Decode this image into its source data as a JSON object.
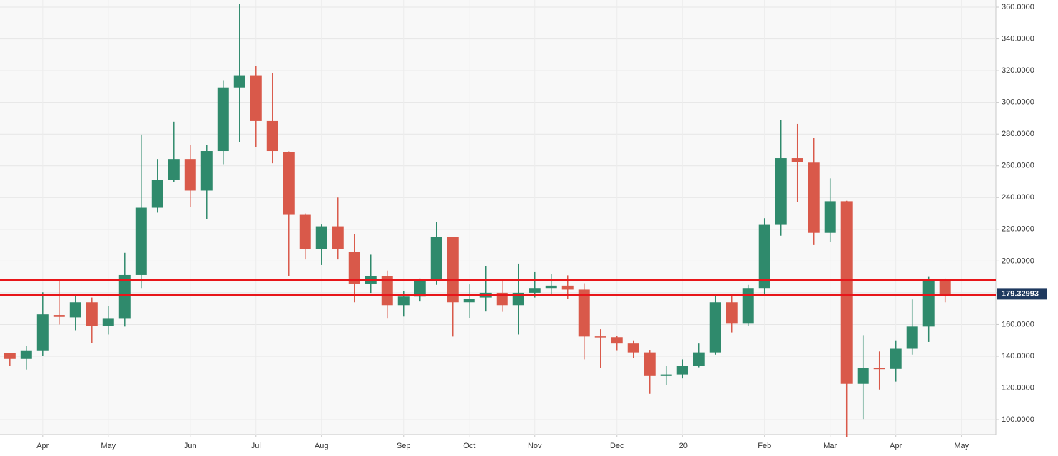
{
  "chart_data": {
    "type": "candlestick",
    "open": [
      141.9,
      138.3,
      143.7,
      166,
      164.5,
      174,
      159,
      163.6,
      191.2,
      233.6,
      251.2,
      264.3,
      244.4,
      269.3,
      309.4,
      317.1,
      288.2,
      268.8,
      229.1,
      207.4,
      221.9,
      206,
      185.8,
      190.7,
      172.2,
      177.6,
      188.5,
      215.1,
      174,
      177,
      180,
      172.2,
      180,
      183,
      184.5,
      182,
      152.5,
      152,
      148,
      142.4,
      127.5,
      128.5,
      133.9,
      142.4,
      174,
      160.5,
      183,
      222.8,
      264.8,
      262,
      217.8,
      237.7,
      122.6,
      132.5,
      132,
      144.7,
      158.7,
      188
    ],
    "high": [
      142,
      146.5,
      180.3,
      188.5,
      178.5,
      177,
      171.8,
      205.2,
      279.7,
      264.3,
      287.8,
      273.3,
      273,
      314,
      362,
      323,
      318.5,
      269,
      230,
      223,
      240,
      216.9,
      204,
      194,
      181,
      189,
      224.6,
      215,
      185.3,
      196.6,
      188,
      198.4,
      193,
      192,
      191,
      186,
      157,
      153,
      150,
      144,
      134,
      138,
      148,
      178,
      178,
      185,
      227,
      288.7,
      286.4,
      277.8,
      252.1,
      238,
      153.3,
      143,
      150,
      175.8,
      190,
      189
    ],
    "low": [
      133.9,
      131.6,
      140.2,
      160,
      156.4,
      148.3,
      153.7,
      158.7,
      183,
      230.5,
      250,
      234,
      226.4,
      261,
      274.7,
      272,
      261.6,
      190.7,
      201,
      197.5,
      201,
      174,
      179.9,
      163.7,
      165,
      174.5,
      185,
      152.4,
      164,
      168.2,
      168,
      153.7,
      177,
      178,
      176,
      138,
      132.5,
      143.8,
      139,
      116.3,
      122,
      126,
      133,
      141,
      155,
      159,
      178,
      216,
      237.2,
      210.1,
      212,
      89,
      100.4,
      119,
      124,
      141,
      149,
      174
    ],
    "close": [
      138.3,
      143.7,
      166.4,
      164.8,
      174,
      159,
      163.6,
      191.2,
      233.6,
      251.2,
      264.3,
      244.4,
      269.3,
      309.4,
      317.1,
      288.2,
      269.3,
      229.1,
      207.4,
      221.9,
      207.4,
      185.8,
      190.7,
      172.2,
      177.6,
      188.5,
      215.1,
      174,
      176.3,
      180,
      172.2,
      180,
      183,
      184.5,
      182,
      152.4,
      152,
      148,
      142.4,
      127.5,
      128.5,
      133.9,
      142.4,
      174,
      160.5,
      183,
      222.8,
      264.8,
      262.5,
      217.8,
      237.7,
      122.6,
      132.5,
      132,
      144.7,
      158.7,
      188,
      179.32993
    ],
    "up_color": "#2f8a6c",
    "down_color": "#d9594a",
    "hlines": [
      188.1,
      178.6
    ],
    "hline_color": "#e8161a",
    "ylim": [
      90.6,
      364.5
    ],
    "yticks": [
      {
        "value": 100,
        "label": "100.0000"
      },
      {
        "value": 120,
        "label": "120.0000"
      },
      {
        "value": 140,
        "label": "140.0000"
      },
      {
        "value": 160,
        "label": "160.0000"
      },
      {
        "value": 180,
        "label": "180.0000"
      },
      {
        "value": 200,
        "label": "200.0000"
      },
      {
        "value": 220,
        "label": "220.0000"
      },
      {
        "value": 240,
        "label": "240.0000"
      },
      {
        "value": 260,
        "label": "260.0000"
      },
      {
        "value": 280,
        "label": "280.0000"
      },
      {
        "value": 300,
        "label": "300.0000"
      },
      {
        "value": 320,
        "label": "320.0000"
      },
      {
        "value": 340,
        "label": "340.0000"
      },
      {
        "value": 360,
        "label": "360.0000"
      }
    ],
    "xlim": [
      -0.6,
      60.1
    ],
    "xticks": [
      {
        "value": 2,
        "label": "Apr"
      },
      {
        "value": 6,
        "label": "May"
      },
      {
        "value": 11,
        "label": "Jun"
      },
      {
        "value": 15,
        "label": "Jul"
      },
      {
        "value": 19,
        "label": "Aug"
      },
      {
        "value": 24,
        "label": "Sep"
      },
      {
        "value": 28,
        "label": "Oct"
      },
      {
        "value": 32,
        "label": "Nov"
      },
      {
        "value": 37,
        "label": "Dec"
      },
      {
        "value": 41,
        "label": "'20"
      },
      {
        "value": 46,
        "label": "Feb"
      },
      {
        "value": 50,
        "label": "Mar"
      },
      {
        "value": 54,
        "label": "Apr"
      },
      {
        "value": 58,
        "label": "May"
      }
    ],
    "grid": true
  }
}
